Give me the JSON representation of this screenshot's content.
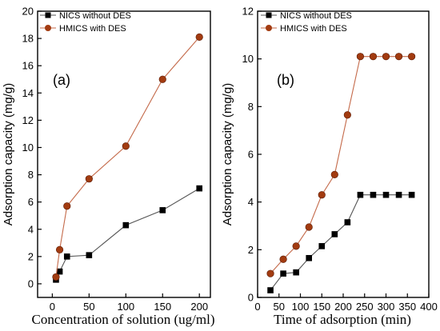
{
  "chart_data": [
    {
      "type": "line",
      "panel_label": "(a)",
      "xlabel": "Concentration of solution (ug/ml)",
      "ylabel": "Adsorption capacity (mg/g)",
      "xlim": [
        -20,
        215
      ],
      "ylim": [
        -1,
        20
      ],
      "xticks": [
        0,
        50,
        100,
        150,
        200
      ],
      "yticks": [
        0,
        2,
        4,
        6,
        8,
        10,
        12,
        14,
        16,
        18,
        20
      ],
      "legend_position": "top-left",
      "series": [
        {
          "name": "NICS without DES",
          "marker": "square",
          "color": "#000000",
          "line_color": "#555555",
          "x": [
            5,
            10,
            20,
            50,
            100,
            150,
            200
          ],
          "y": [
            0.3,
            0.9,
            2.0,
            2.1,
            4.3,
            5.4,
            7.0
          ]
        },
        {
          "name": "HMICS with DES",
          "marker": "circle",
          "color": "#a23b10",
          "line_color": "#c46a4a",
          "x": [
            5,
            10,
            20,
            50,
            100,
            150,
            200
          ],
          "y": [
            0.5,
            2.5,
            5.7,
            7.7,
            10.1,
            15.0,
            18.1
          ]
        }
      ]
    },
    {
      "type": "line",
      "panel_label": "(b)",
      "xlabel": "Time of adsorption (min)",
      "ylabel": "Adsorption capacity (mg/g)",
      "xlim": [
        0,
        400
      ],
      "ylim": [
        0,
        12
      ],
      "xticks": [
        0,
        50,
        100,
        150,
        200,
        250,
        300,
        350,
        400
      ],
      "yticks": [
        0,
        2,
        4,
        6,
        8,
        10,
        12
      ],
      "legend_position": "top-left",
      "series": [
        {
          "name": "NICS without DES",
          "marker": "square",
          "color": "#000000",
          "line_color": "#555555",
          "x": [
            30,
            60,
            90,
            120,
            150,
            180,
            210,
            240,
            270,
            300,
            330,
            360
          ],
          "y": [
            0.3,
            1.0,
            1.05,
            1.65,
            2.15,
            2.65,
            3.15,
            4.3,
            4.3,
            4.3,
            4.3,
            4.3
          ]
        },
        {
          "name": "HMICS with DES",
          "marker": "circle",
          "color": "#a23b10",
          "line_color": "#c46a4a",
          "x": [
            30,
            60,
            90,
            120,
            150,
            180,
            210,
            240,
            270,
            300,
            330,
            360
          ],
          "y": [
            1.0,
            1.6,
            2.15,
            2.95,
            4.3,
            5.15,
            7.65,
            10.1,
            10.1,
            10.1,
            10.1,
            10.1
          ]
        }
      ]
    }
  ]
}
